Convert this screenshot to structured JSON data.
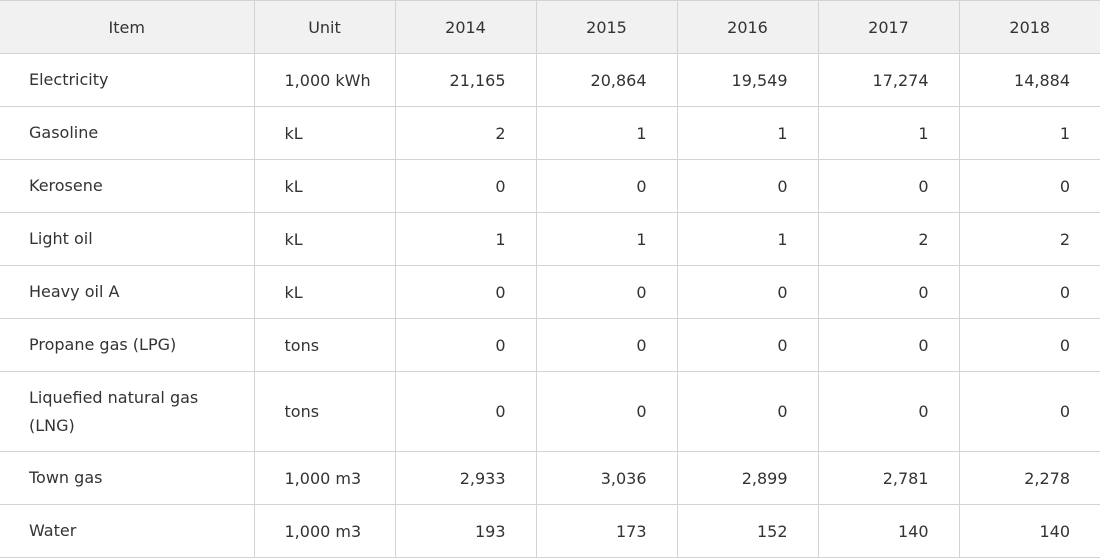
{
  "table": {
    "headers": [
      "Item",
      "Unit",
      "2014",
      "2015",
      "2016",
      "2017",
      "2018"
    ],
    "rows": [
      {
        "item": "Electricity",
        "unit": "1,000 kWh",
        "values": [
          "21,165",
          "20,864",
          "19,549",
          "17,274",
          "14,884"
        ]
      },
      {
        "item": "Gasoline",
        "unit": "kL",
        "values": [
          "2",
          "1",
          "1",
          "1",
          "1"
        ]
      },
      {
        "item": "Kerosene",
        "unit": "kL",
        "values": [
          "0",
          "0",
          "0",
          "0",
          "0"
        ]
      },
      {
        "item": "Light oil",
        "unit": "kL",
        "values": [
          "1",
          "1",
          "1",
          "2",
          "2"
        ]
      },
      {
        "item": "Heavy oil A",
        "unit": "kL",
        "values": [
          "0",
          "0",
          "0",
          "0",
          "0"
        ]
      },
      {
        "item": "Propane gas (LPG)",
        "unit": "tons",
        "values": [
          "0",
          "0",
          "0",
          "0",
          "0"
        ]
      },
      {
        "item": "Liquefied natural gas (LNG)",
        "unit": "tons",
        "values": [
          "0",
          "0",
          "0",
          "0",
          "0"
        ]
      },
      {
        "item": "Town gas",
        "unit": "1,000 m3",
        "values": [
          "2,933",
          "3,036",
          "2,899",
          "2,781",
          "2,278"
        ]
      },
      {
        "item": "Water",
        "unit": "1,000 m3",
        "values": [
          "193",
          "173",
          "152",
          "140",
          "140"
        ]
      }
    ]
  }
}
